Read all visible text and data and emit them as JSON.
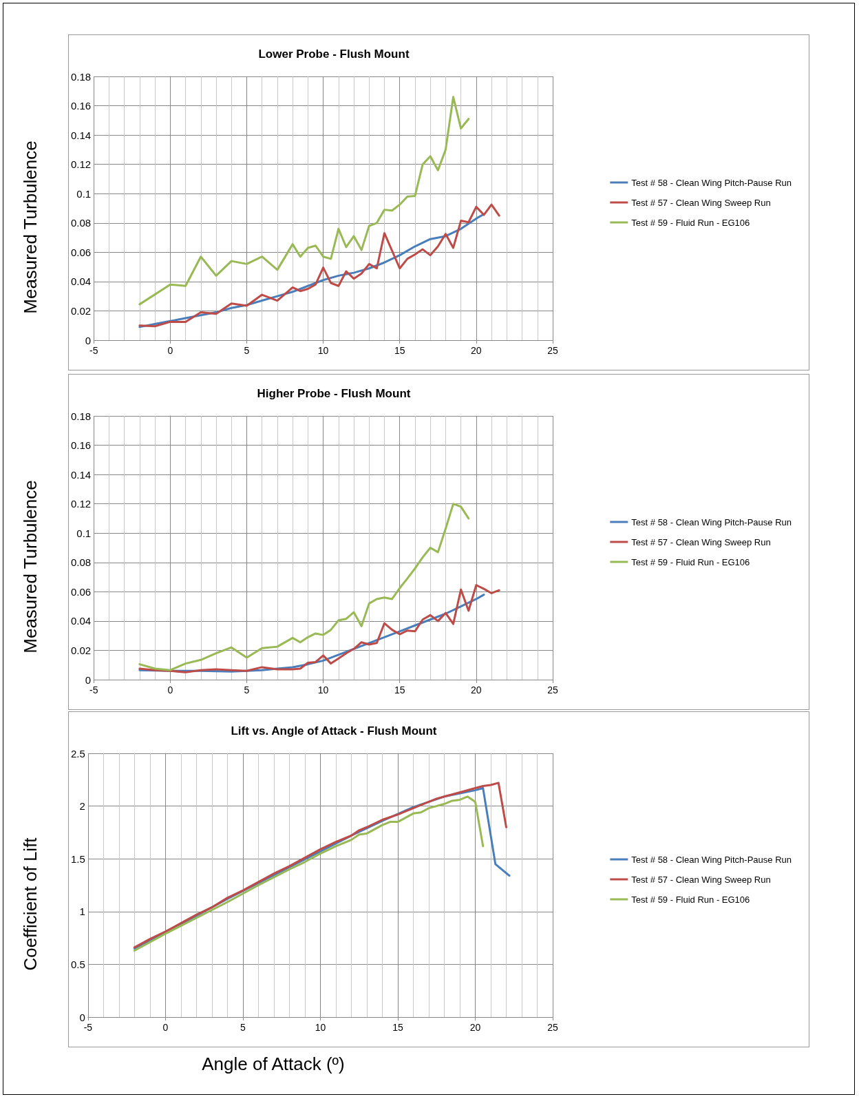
{
  "chart_data": [
    {
      "type": "line",
      "title": "Lower Probe - Flush Mount",
      "ylabel": "Measured Turbulence",
      "xlim": [
        -5,
        25
      ],
      "xticks": [
        -5,
        0,
        5,
        10,
        15,
        20,
        25
      ],
      "ylim": [
        0,
        0.18
      ],
      "yticks": [
        0,
        0.02,
        0.04,
        0.06,
        0.08,
        0.1,
        0.12,
        0.14,
        0.16,
        0.18
      ],
      "grid": true,
      "legend": "right",
      "marker": "none",
      "line_style": "solid",
      "series": [
        {
          "name": "Test # 58 - Clean Wing Pitch-Pause Run",
          "color": "#4a7ebb",
          "x": [
            -2,
            -1,
            0,
            1,
            2,
            3,
            4,
            5,
            6,
            7,
            8,
            9,
            10,
            11,
            12,
            13,
            14,
            15,
            16,
            17,
            18,
            19,
            20,
            20.5
          ],
          "values": [
            0.009,
            0.011,
            0.013,
            0.015,
            0.017,
            0.019,
            0.022,
            0.024,
            0.027,
            0.03,
            0.033,
            0.037,
            0.041,
            0.044,
            0.046,
            0.049,
            0.053,
            0.058,
            0.064,
            0.069,
            0.071,
            0.076,
            0.083,
            0.086
          ]
        },
        {
          "name": "Test # 57 - Clean Wing Sweep Run",
          "color": "#be4b48",
          "x": [
            -2,
            -1,
            0,
            1,
            2,
            3,
            4,
            5,
            6,
            7,
            8,
            8.5,
            9,
            9.5,
            10,
            10.5,
            11,
            11.5,
            12,
            12.5,
            13,
            13.5,
            14,
            14.5,
            15,
            15.5,
            16,
            16.5,
            17,
            17.5,
            18,
            18.5,
            19,
            19.5,
            20,
            20.5,
            21,
            21.5
          ],
          "values": [
            0.01,
            0.0095,
            0.0125,
            0.0125,
            0.019,
            0.018,
            0.025,
            0.0235,
            0.031,
            0.027,
            0.036,
            0.0335,
            0.035,
            0.038,
            0.0495,
            0.039,
            0.037,
            0.047,
            0.042,
            0.0455,
            0.052,
            0.049,
            0.073,
            0.061,
            0.049,
            0.0555,
            0.0585,
            0.062,
            0.058,
            0.064,
            0.0725,
            0.063,
            0.0815,
            0.0805,
            0.091,
            0.0855,
            0.0925,
            0.085
          ]
        },
        {
          "name": "Test # 59 - Fluid Run - EG106",
          "color": "#98b954",
          "x": [
            -2,
            0,
            1,
            2,
            3,
            4,
            5,
            6,
            7,
            8,
            8.5,
            9,
            9.5,
            10,
            10.5,
            11,
            11.5,
            12,
            12.5,
            13,
            13.5,
            14,
            14.5,
            15,
            15.5,
            16,
            16.5,
            17,
            17.5,
            18,
            18.5,
            19,
            19.5
          ],
          "values": [
            0.0245,
            0.038,
            0.037,
            0.057,
            0.044,
            0.054,
            0.052,
            0.057,
            0.048,
            0.0655,
            0.057,
            0.063,
            0.0645,
            0.057,
            0.0555,
            0.076,
            0.0635,
            0.071,
            0.0615,
            0.078,
            0.08,
            0.089,
            0.0885,
            0.0925,
            0.098,
            0.0985,
            0.12,
            0.1255,
            0.116,
            0.13,
            0.166,
            0.1445,
            0.151
          ]
        }
      ]
    },
    {
      "type": "line",
      "title": "Higher Probe - Flush Mount",
      "ylabel": "Measured Turbulence",
      "xlim": [
        -5,
        25
      ],
      "xticks": [
        -5,
        0,
        5,
        10,
        15,
        20,
        25
      ],
      "ylim": [
        0,
        0.18
      ],
      "yticks": [
        0,
        0.02,
        0.04,
        0.06,
        0.08,
        0.1,
        0.12,
        0.14,
        0.16,
        0.18
      ],
      "grid": true,
      "legend": "right",
      "marker": "none",
      "line_style": "solid",
      "series": [
        {
          "name": "Test # 58 - Clean Wing Pitch-Pause Run",
          "color": "#4a7ebb",
          "x": [
            -2,
            0,
            2,
            4,
            5,
            6,
            7,
            8,
            9,
            10,
            11,
            12,
            13,
            14,
            15,
            16,
            17,
            18,
            19,
            20,
            20.5
          ],
          "values": [
            0.0065,
            0.006,
            0.006,
            0.0055,
            0.006,
            0.0065,
            0.0075,
            0.0085,
            0.0105,
            0.013,
            0.017,
            0.021,
            0.025,
            0.029,
            0.033,
            0.037,
            0.041,
            0.045,
            0.05,
            0.055,
            0.058
          ]
        },
        {
          "name": "Test # 57 - Clean Wing Sweep Run",
          "color": "#be4b48",
          "x": [
            -2,
            -1,
            0,
            1,
            2,
            3,
            4,
            5,
            6,
            7,
            8,
            8.5,
            9,
            9.5,
            10,
            10.5,
            11,
            11.5,
            12,
            12.5,
            13,
            13.5,
            14,
            14.5,
            15,
            15.5,
            16,
            16.5,
            17,
            17.5,
            18,
            18.5,
            19,
            19.5,
            20,
            20.5,
            21,
            21.5
          ],
          "values": [
            0.0075,
            0.0065,
            0.006,
            0.005,
            0.0065,
            0.007,
            0.0065,
            0.006,
            0.0085,
            0.007,
            0.007,
            0.0075,
            0.0115,
            0.012,
            0.0165,
            0.011,
            0.0145,
            0.018,
            0.021,
            0.0255,
            0.024,
            0.025,
            0.0385,
            0.034,
            0.031,
            0.0335,
            0.033,
            0.041,
            0.044,
            0.04,
            0.0455,
            0.038,
            0.0615,
            0.047,
            0.0645,
            0.062,
            0.059,
            0.061
          ]
        },
        {
          "name": "Test # 59 - Fluid Run - EG106",
          "color": "#98b954",
          "x": [
            -2,
            -1,
            0,
            1,
            2,
            3,
            4,
            5,
            6,
            7,
            8,
            8.5,
            9,
            9.5,
            10,
            10.5,
            11,
            11.5,
            12,
            12.5,
            13,
            13.5,
            14,
            14.5,
            15,
            15.5,
            16,
            16.5,
            17,
            17.5,
            18,
            18.5,
            19,
            19.5
          ],
          "values": [
            0.0105,
            0.0075,
            0.0065,
            0.011,
            0.0135,
            0.018,
            0.022,
            0.015,
            0.0215,
            0.0225,
            0.0285,
            0.0255,
            0.029,
            0.0315,
            0.0305,
            0.034,
            0.0405,
            0.0415,
            0.046,
            0.0365,
            0.052,
            0.055,
            0.056,
            0.055,
            0.0625,
            0.069,
            0.076,
            0.0835,
            0.09,
            0.087,
            0.103,
            0.12,
            0.118,
            0.11
          ]
        }
      ]
    },
    {
      "type": "line",
      "title": "Lift vs. Angle of Attack - Flush Mount",
      "ylabel": "Coefficient of Lift",
      "xlabel": "Angle of Attack (º)",
      "xlim": [
        -5,
        25
      ],
      "xticks": [
        -5,
        0,
        5,
        10,
        15,
        20,
        25
      ],
      "ylim": [
        0,
        2.5
      ],
      "yticks": [
        0,
        0.5,
        1,
        1.5,
        2,
        2.5
      ],
      "grid": true,
      "legend": "right",
      "marker": "none",
      "line_style": "solid",
      "series": [
        {
          "name": "Test # 58 - Clean Wing Pitch-Pause Run",
          "color": "#4a7ebb",
          "x": [
            -2,
            0,
            2,
            4,
            6,
            8,
            10,
            12,
            14,
            16,
            18,
            20,
            20.5,
            21.3,
            22.2
          ],
          "values": [
            0.65,
            0.8,
            0.96,
            1.12,
            1.27,
            1.42,
            1.57,
            1.72,
            1.86,
            1.99,
            2.09,
            2.15,
            2.17,
            1.45,
            1.34
          ]
        },
        {
          "name": "Test # 57 - Clean Wing Sweep Run",
          "color": "#be4b48",
          "x": [
            -2,
            -1,
            0,
            1,
            2,
            3,
            4,
            5,
            6,
            7,
            8,
            9,
            10,
            11,
            12,
            12.5,
            13,
            14,
            15,
            16,
            17,
            17.5,
            18,
            19,
            20,
            20.5,
            21,
            21.5,
            22
          ],
          "values": [
            0.66,
            0.74,
            0.81,
            0.89,
            0.97,
            1.04,
            1.13,
            1.2,
            1.28,
            1.36,
            1.43,
            1.51,
            1.59,
            1.66,
            1.72,
            1.77,
            1.8,
            1.87,
            1.92,
            1.98,
            2.04,
            2.07,
            2.09,
            2.13,
            2.17,
            2.19,
            2.2,
            2.22,
            1.8
          ]
        },
        {
          "name": "Test # 59 - Fluid Run - EG106",
          "color": "#98b954",
          "x": [
            -2,
            0,
            2,
            4,
            6,
            8,
            9,
            10,
            11,
            12,
            12.5,
            13,
            14,
            14.5,
            15,
            16,
            16.5,
            17,
            18,
            18.5,
            19,
            19.5,
            20,
            20.5
          ],
          "values": [
            0.63,
            0.79,
            0.94,
            1.09,
            1.25,
            1.4,
            1.47,
            1.55,
            1.62,
            1.68,
            1.73,
            1.74,
            1.82,
            1.85,
            1.85,
            1.93,
            1.94,
            1.98,
            2.02,
            2.05,
            2.06,
            2.09,
            2.04,
            1.62
          ]
        }
      ]
    }
  ]
}
